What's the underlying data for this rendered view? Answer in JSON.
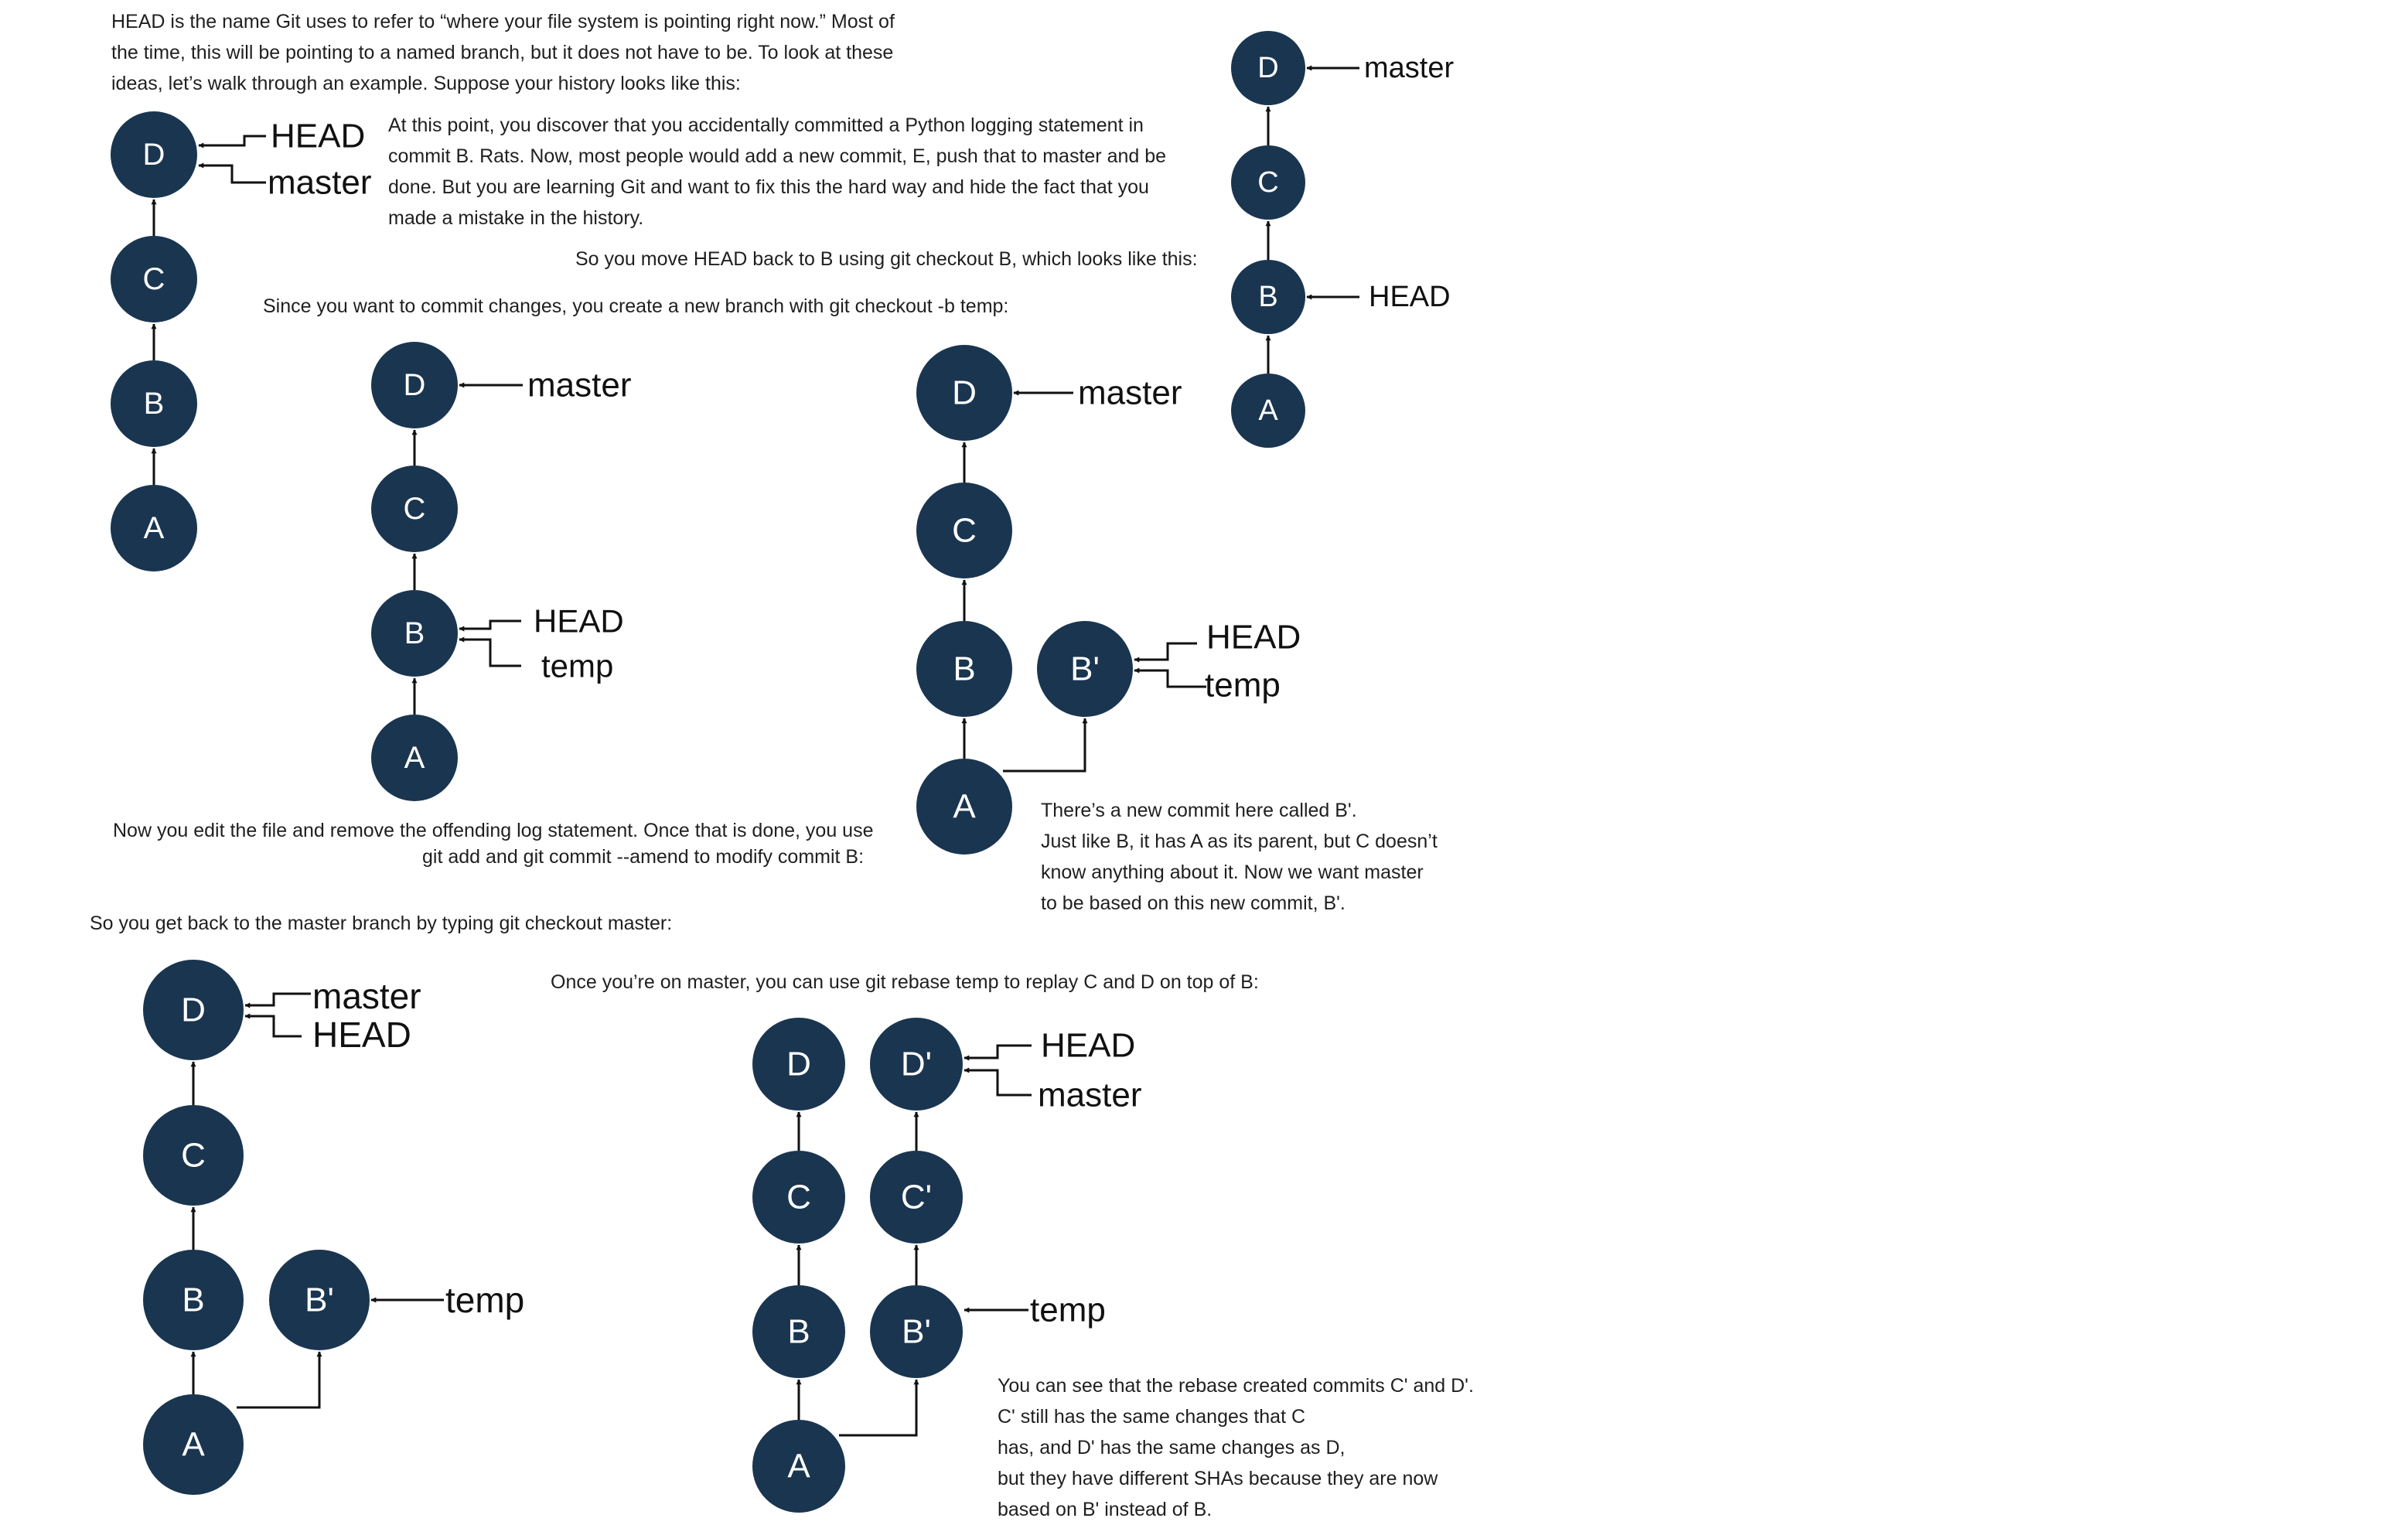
{
  "colors": {
    "node": "#1a3550",
    "node_text": "#ffffff",
    "edge": "#111111",
    "text": "#1f1f1f"
  },
  "paragraphs": [
    {
      "id": "p1",
      "lines": [
        "HEAD is the name Git uses to refer to “where your file system is pointing right now.” Most of",
        "the time, this will be pointing to a named branch, but it does not have to be. To look at these",
        "ideas, let’s walk through an example. Suppose your history looks like this:"
      ]
    },
    {
      "id": "p2",
      "lines": [
        "At this point, you discover that you accidentally committed a Python logging statement in",
        "commit B. Rats. Now, most people would add a new commit, E, push that to master and be",
        "done. But you are learning Git and want to fix this the hard way and hide the fact that you",
        "made a mistake in the history."
      ]
    },
    {
      "id": "p3",
      "lines": [
        "So you move HEAD back to B using git checkout B, which looks like this:"
      ]
    },
    {
      "id": "p4",
      "lines": [
        "Since you want to commit changes, you create a new branch with git checkout -b temp:"
      ]
    },
    {
      "id": "p5",
      "lines": [
        "Now you edit the file and remove the offending log statement. Once that is done, you use",
        "git add and git commit --amend to modify commit B:"
      ]
    },
    {
      "id": "p6",
      "lines": [
        "There’s a new commit here called B'.",
        "Just like B, it has A as its parent, but C doesn’t",
        "know anything about it. Now we want master",
        "to be based on this new commit, B'."
      ]
    },
    {
      "id": "p7",
      "lines": [
        "So you get back to the master branch by typing git checkout master:"
      ]
    },
    {
      "id": "p8",
      "lines": [
        "Once you’re on master, you can use git rebase temp to replay C and D on top of B:"
      ]
    },
    {
      "id": "p9",
      "lines": [
        "You can see that the rebase created commits C' and D'.",
        "C' still has the same changes that C",
        "has, and D' has the same changes as D,",
        "but they have different SHAs because they are now",
        "based on B' instead of B."
      ]
    }
  ],
  "diagrams": [
    {
      "id": "d1",
      "nodes": [
        "D",
        "C",
        "B",
        "A"
      ],
      "labels": [
        "HEAD",
        "master"
      ]
    },
    {
      "id": "d2",
      "nodes": [
        "D",
        "C",
        "B",
        "A"
      ],
      "labels": [
        "master",
        "HEAD"
      ]
    },
    {
      "id": "d3",
      "nodes": [
        "D",
        "C",
        "B",
        "A"
      ],
      "labels": [
        "master",
        "HEAD",
        "temp"
      ]
    },
    {
      "id": "d4",
      "nodes": [
        "D",
        "C",
        "B",
        "B'",
        "A"
      ],
      "labels": [
        "master",
        "HEAD",
        "temp"
      ]
    },
    {
      "id": "d5",
      "nodes": [
        "D",
        "C",
        "B",
        "B'",
        "A"
      ],
      "labels": [
        "master",
        "HEAD",
        "temp"
      ]
    },
    {
      "id": "d6",
      "nodes": [
        "D",
        "D'",
        "C",
        "C'",
        "B",
        "B'",
        "A"
      ],
      "labels": [
        "HEAD",
        "master",
        "temp"
      ]
    }
  ]
}
